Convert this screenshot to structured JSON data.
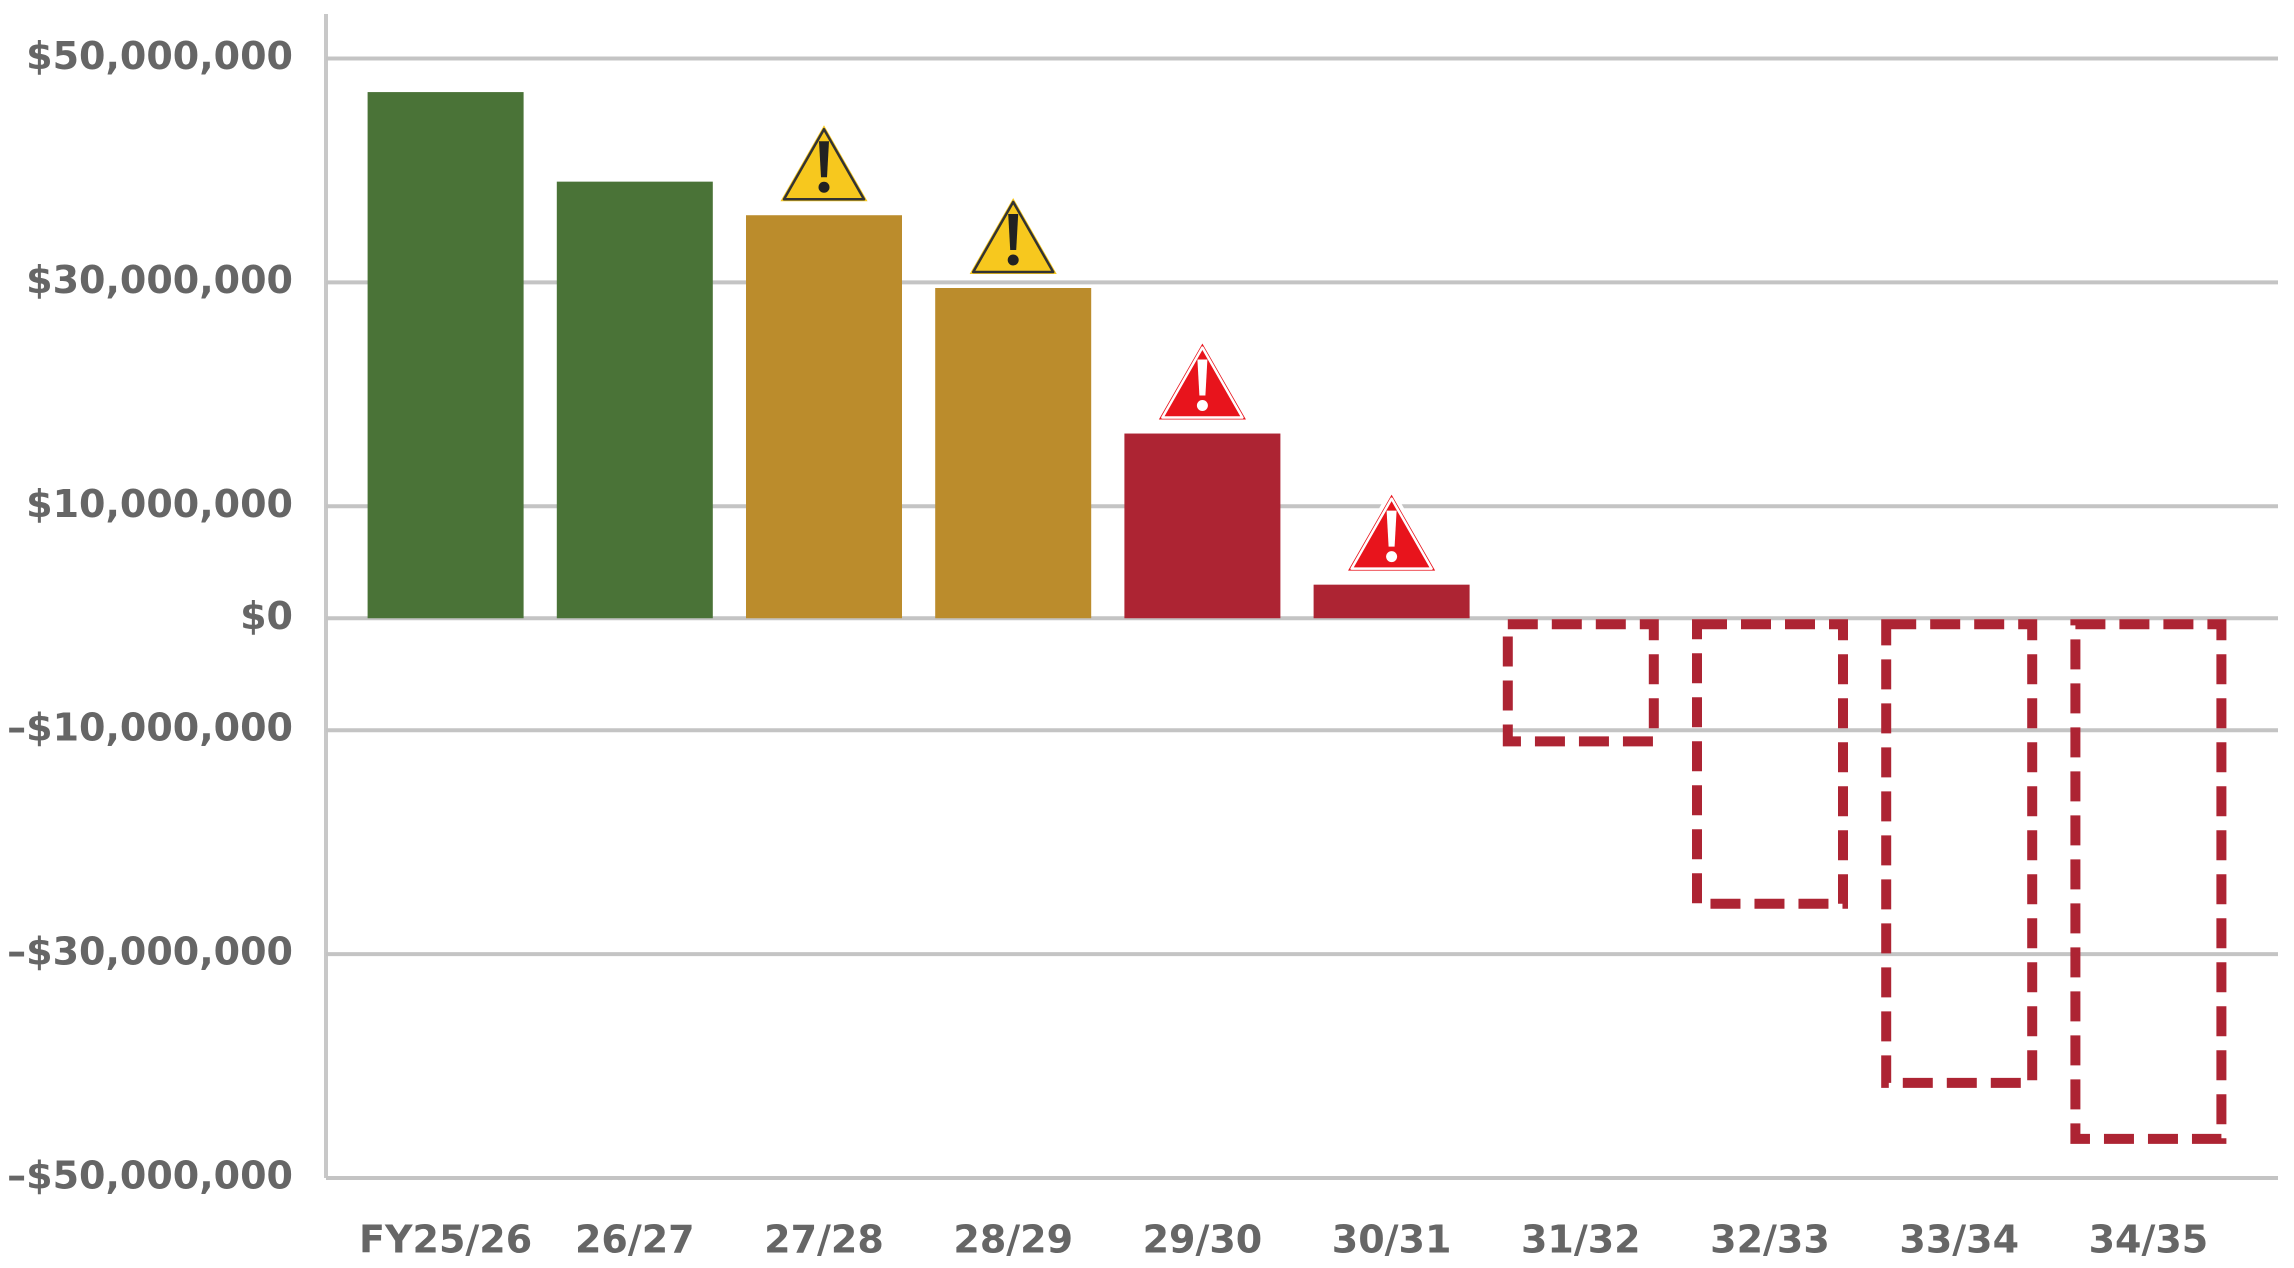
{
  "chart_data": {
    "type": "bar",
    "categories": [
      "FY25/26",
      "26/27",
      "27/28",
      "28/29",
      "29/30",
      "30/31",
      "31/32",
      "32/33",
      "33/34",
      "34/35"
    ],
    "values": [
      47000000,
      39000000,
      36000000,
      29500000,
      16500000,
      3000000,
      -11000000,
      -25500000,
      -41500000,
      -46500000
    ],
    "colors": [
      "#4a7337",
      "#4a7337",
      "#bb8c2c",
      "#bb8c2c",
      "#ad2433",
      "#ad2433",
      "#ad2433",
      "#ad2433",
      "#ad2433",
      "#ad2433"
    ],
    "warning_icons": [
      null,
      null,
      "#f7c81e",
      "#f7c81e",
      "#e8141c",
      "#e8141c",
      null,
      null,
      null,
      null
    ],
    "ylim": [
      -50000000,
      50000000
    ],
    "yticks": [
      {
        "value": 50000000,
        "label": "$50,000,000"
      },
      {
        "value": 30000000,
        "label": "$30,000,000"
      },
      {
        "value": 10000000,
        "label": "$10,000,000"
      },
      {
        "value": 0,
        "label": "$0"
      },
      {
        "value": -10000000,
        "label": "–$10,000,000"
      },
      {
        "value": -30000000,
        "label": "–$30,000,000"
      },
      {
        "value": -50000000,
        "label": "–$50,000,000"
      }
    ],
    "grid": true
  }
}
